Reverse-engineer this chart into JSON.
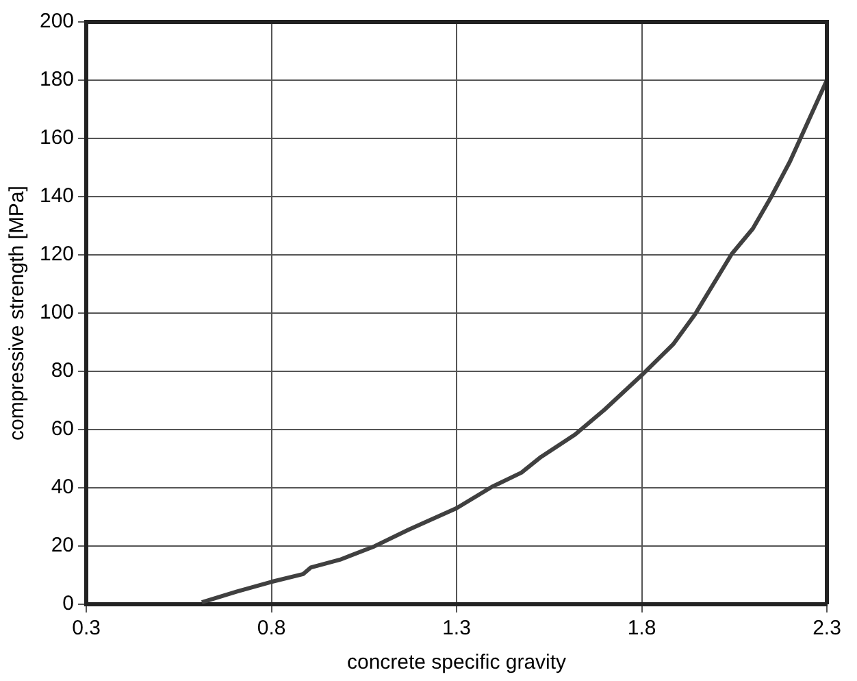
{
  "chart_data": {
    "type": "line",
    "xlabel": "concrete specific gravity",
    "ylabel": "compressive strength [MPa]",
    "series": [
      {
        "color": "#404040",
        "x": [
          0.612,
          0.707,
          0.8,
          0.886,
          0.906,
          0.985,
          1.078,
          1.17,
          1.3,
          1.395,
          1.475,
          1.528,
          1.62,
          1.7,
          1.8,
          1.885,
          1.944,
          2.043,
          2.1,
          2.15,
          2.2,
          2.25,
          2.3
        ],
        "values": [
          0.7,
          4.4,
          7.7,
          10.4,
          12.6,
          15.3,
          19.9,
          25.6,
          33,
          40.3,
          45.2,
          50.6,
          58.3,
          66.9,
          78.7,
          89.3,
          99.6,
          120.3,
          129,
          140,
          152,
          166,
          180
        ]
      }
    ],
    "xlim": [
      0.3,
      2.3
    ],
    "xticks": [
      0.3,
      0.8,
      1.3,
      1.8,
      2.3
    ],
    "ylim": [
      0,
      200
    ],
    "yticks": [
      0,
      20,
      40,
      60,
      80,
      100,
      120,
      140,
      160,
      180,
      200
    ],
    "grid": true,
    "marker": "none",
    "line_style": "solid",
    "legend": false
  }
}
